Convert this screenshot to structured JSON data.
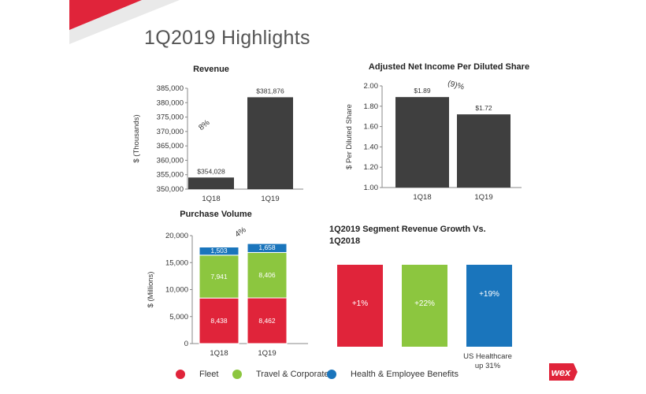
{
  "slide": {
    "title": "1Q2019 Highlights"
  },
  "chart_data": [
    {
      "id": "revenue",
      "type": "bar",
      "title": "Revenue",
      "ylabel": "$ (Thousands)",
      "categories": [
        "1Q18",
        "1Q19"
      ],
      "values": [
        354028,
        381876
      ],
      "data_labels": [
        "$354,028",
        "$381,876"
      ],
      "ylim": [
        350000,
        385000
      ],
      "yticks": [
        350000,
        355000,
        360000,
        365000,
        370000,
        375000,
        380000,
        385000
      ],
      "ytick_labels": [
        "350,000",
        "355,000",
        "360,000",
        "365,000",
        "370,000",
        "375,000",
        "380,000",
        "385,000"
      ],
      "annotation": "8%",
      "color": "#3f3f3f",
      "grid": false
    },
    {
      "id": "eps",
      "type": "bar",
      "title": "Adjusted Net Income Per Diluted Share",
      "ylabel": "$ Per Diluted Share",
      "categories": [
        "1Q18",
        "1Q19"
      ],
      "values": [
        1.89,
        1.72
      ],
      "data_labels": [
        "$1.89",
        "$1.72"
      ],
      "ylim": [
        1.0,
        2.0
      ],
      "yticks": [
        1.0,
        1.2,
        1.4,
        1.6,
        1.8,
        2.0
      ],
      "ytick_labels": [
        "1.00",
        "1.20",
        "1.40",
        "1.60",
        "1.80",
        "2.00"
      ],
      "annotation": "(9)%",
      "color": "#3f3f3f",
      "grid": false
    },
    {
      "id": "volume",
      "type": "bar",
      "stacked": true,
      "title": "Purchase Volume",
      "ylabel": "$ (Millions)",
      "categories": [
        "1Q18",
        "1Q19"
      ],
      "series": [
        {
          "name": "Fleet",
          "values": [
            8438,
            8462
          ],
          "labels": [
            "8,438",
            "8,462"
          ],
          "color": "#e0243a"
        },
        {
          "name": "Travel & Corporate",
          "values": [
            7941,
            8406
          ],
          "labels": [
            "7,941",
            "8,406"
          ],
          "color": "#8cc63f"
        },
        {
          "name": "Health & Employee Benefits",
          "values": [
            1503,
            1658
          ],
          "labels": [
            "1,503",
            "1,658"
          ],
          "color": "#1a75bc"
        }
      ],
      "ylim": [
        0,
        20000
      ],
      "yticks": [
        0,
        5000,
        10000,
        15000,
        20000
      ],
      "ytick_labels": [
        "0",
        "5,000",
        "10,000",
        "15,000",
        "20,000"
      ],
      "annotation": "4%",
      "legend": "bottom",
      "grid": false
    },
    {
      "id": "segment",
      "type": "bar",
      "title_lines": [
        "1Q2019 Segment Revenue Growth Vs.",
        "1Q2018"
      ],
      "values": [
        1,
        22,
        19
      ],
      "bar_labels": [
        "+1%",
        "+22%",
        "+19%"
      ],
      "colors": [
        "#e0243a",
        "#8cc63f",
        "#1a75bc"
      ],
      "note_lines": [
        "US Healthcare",
        "up 31%"
      ]
    }
  ],
  "legend": {
    "items": [
      {
        "label": "Fleet",
        "color": "#e0243a"
      },
      {
        "label": "Travel & Corporate",
        "color": "#8cc63f"
      },
      {
        "label": "Health & Employee Benefits",
        "color": "#1a75bc"
      }
    ]
  },
  "logo": {
    "text": "wex",
    "color": "#e0243a"
  }
}
